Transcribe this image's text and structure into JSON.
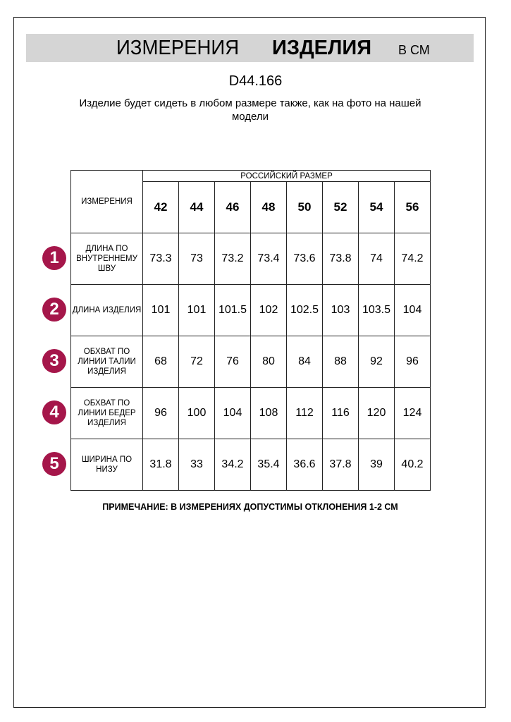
{
  "header": {
    "title_regular": "ИЗМЕРЕНИЯ",
    "title_bold": "ИЗДЕЛИЯ",
    "unit": "В СМ"
  },
  "article": "D44.166",
  "subtitle": "Изделие будет сидеть в любом размере также, как на фото на нашей модели",
  "table": {
    "corner_label": "ИЗМЕРЕНИЯ",
    "group_label": "РОССИЙСКИЙ РАЗМЕР",
    "sizes": [
      "42",
      "44",
      "46",
      "48",
      "50",
      "52",
      "54",
      "56"
    ],
    "rows": [
      {
        "num": "1",
        "label": "ДЛИНА ПО ВНУТРЕННЕМУ ШВУ",
        "values": [
          "73.3",
          "73",
          "73.2",
          "73.4",
          "73.6",
          "73.8",
          "74",
          "74.2"
        ]
      },
      {
        "num": "2",
        "label": "ДЛИНА ИЗДЕЛИЯ",
        "values": [
          "101",
          "101",
          "101.5",
          "102",
          "102.5",
          "103",
          "103.5",
          "104"
        ]
      },
      {
        "num": "3",
        "label": "ОБХВАТ ПО ЛИНИИ ТАЛИИ ИЗДЕЛИЯ",
        "values": [
          "68",
          "72",
          "76",
          "80",
          "84",
          "88",
          "92",
          "96"
        ]
      },
      {
        "num": "4",
        "label": "ОБХВАТ ПО ЛИНИИ БЕДЕР ИЗДЕЛИЯ",
        "values": [
          "96",
          "100",
          "104",
          "108",
          "112",
          "116",
          "120",
          "124"
        ]
      },
      {
        "num": "5",
        "label": "ШИРИНА ПО НИЗУ",
        "values": [
          "31.8",
          "33",
          "34.2",
          "35.4",
          "36.6",
          "37.8",
          "39",
          "40.2"
        ]
      }
    ]
  },
  "note": "ПРИМЕЧАНИЕ: В ИЗМЕРЕНИЯХ ДОПУСТИМЫ ОТКЛОНЕНИЯ 1-2 СМ",
  "colors": {
    "accent": "#a5164a",
    "banner": "#d5d5d5"
  }
}
